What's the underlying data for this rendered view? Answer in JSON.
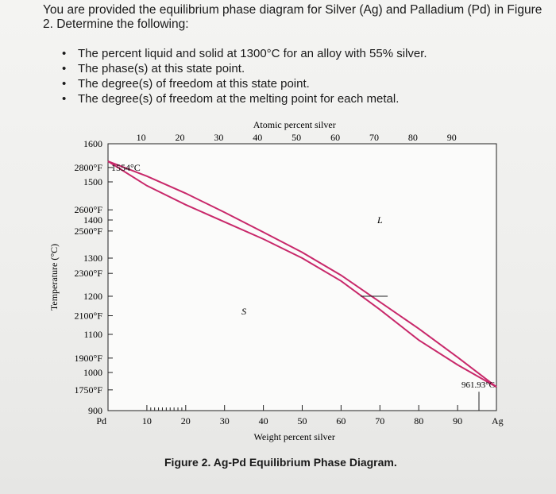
{
  "prompt": {
    "intro": "You are provided the equilibrium phase diagram for Silver (Ag) and Palladium (Pd) in Figure 2. Determine the following:",
    "bullets": [
      "The percent liquid and solid at 1300°C for an alloy with 55% silver.",
      "The phase(s) at this state point.",
      "The degree(s) of freedom at this state point.",
      "The degree(s) of freedom at the melting point for each metal."
    ]
  },
  "figure_caption": "Figure 2. Ag-Pd Equilibrium Phase Diagram.",
  "chart_data": {
    "type": "line",
    "title": "",
    "xlabel": "Weight percent silver",
    "x2label": "Atomic percent silver",
    "ylabel": "Temperature (°C)",
    "xlim": [
      0,
      100
    ],
    "ylim": [
      900,
      1600
    ],
    "x_ticks": [
      "10",
      "20",
      "30",
      "40",
      "50",
      "60",
      "70",
      "80",
      "90"
    ],
    "x_end_labels": {
      "left": "Pd",
      "right": "Ag"
    },
    "x2_ticks": [
      "10",
      "20",
      "30",
      "40",
      "50",
      "60",
      "70",
      "80",
      "90"
    ],
    "y_ticks_c": [
      "1600",
      "1500",
      "1400",
      "1300",
      "1200",
      "1100",
      "1000",
      "900"
    ],
    "y_ticks_f": [
      "2800°F",
      "2600°F",
      "2500°F",
      "2300°F",
      "2100°F",
      "1900°F",
      "1750°F"
    ],
    "annotations": {
      "pd_melt": "1554°C",
      "ag_melt": "961.93°C",
      "liquid_label": "L",
      "solid_label": "S"
    },
    "series": [
      {
        "values": [
          [
            0,
            1554
          ],
          [
            10,
            1515
          ],
          [
            20,
            1470
          ],
          [
            30,
            1420
          ],
          [
            40,
            1368
          ],
          [
            50,
            1315
          ],
          [
            60,
            1255
          ],
          [
            70,
            1185
          ],
          [
            80,
            1115
          ],
          [
            90,
            1040
          ],
          [
            100,
            962
          ]
        ]
      },
      {
        "values": [
          [
            0,
            1554
          ],
          [
            10,
            1490
          ],
          [
            20,
            1440
          ],
          [
            30,
            1395
          ],
          [
            40,
            1350
          ],
          [
            50,
            1300
          ],
          [
            60,
            1240
          ],
          [
            70,
            1165
          ],
          [
            80,
            1085
          ],
          [
            90,
            1020
          ],
          [
            100,
            962
          ]
        ]
      }
    ],
    "tie_line": {
      "temperature": 1200,
      "x_start": 65,
      "x_end": 72
    },
    "grid": false,
    "colors": {
      "curve": "#c8286a",
      "axis": "#222222"
    }
  }
}
